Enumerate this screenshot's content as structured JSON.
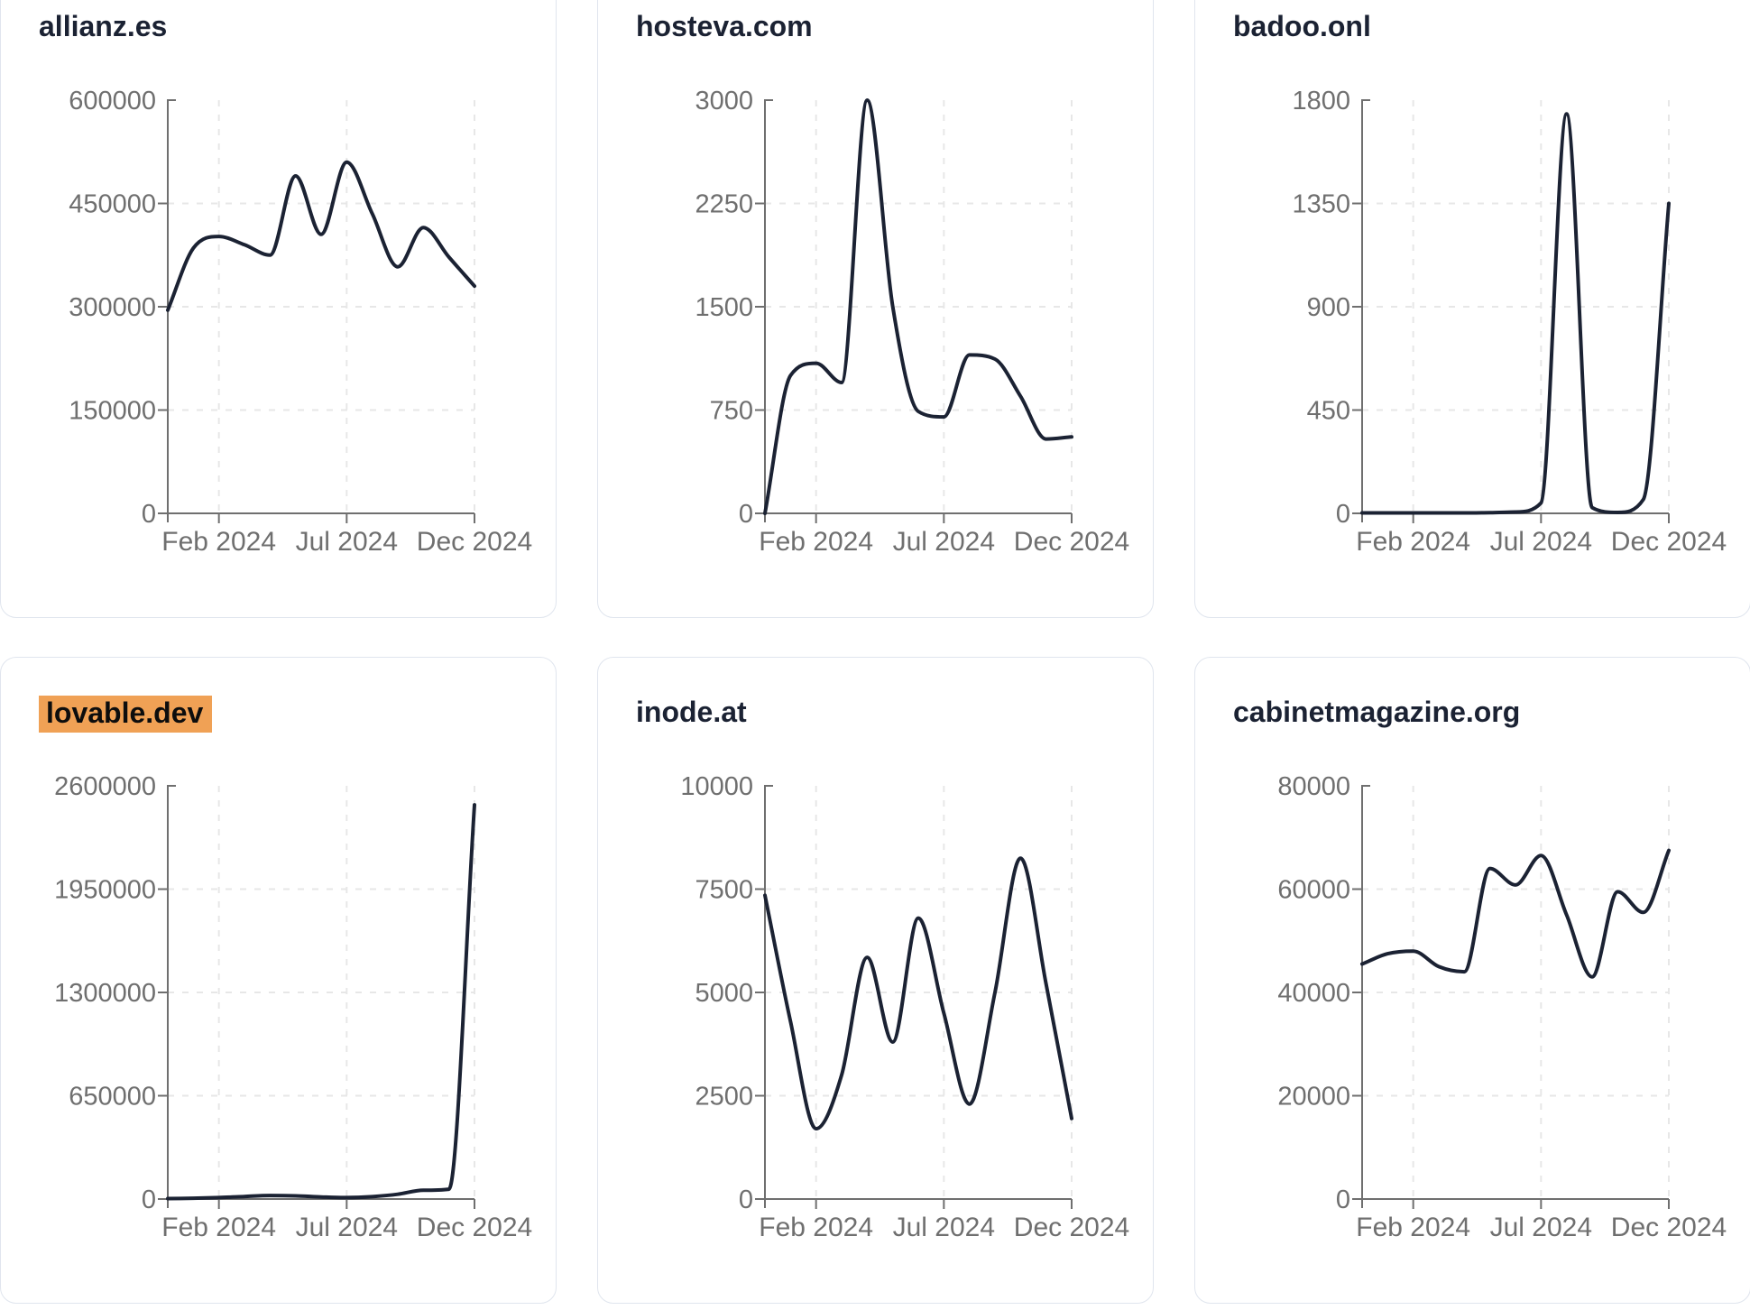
{
  "page": {
    "background_color": "#ffffff",
    "card_border_color": "#e0e5ee",
    "line_color": "#1b2233",
    "title_color": "#1b2233",
    "axis_color": "#6f6f6f",
    "tick_label_color": "#6f6f6f",
    "grid_color": "#e7e7e7",
    "highlight_color": "#f0a155"
  },
  "months": [
    "Dec 2023",
    "Jan 2024",
    "Feb 2024",
    "Mar 2024",
    "Apr 2024",
    "May 2024",
    "Jun 2024",
    "Jul 2024",
    "Aug 2024",
    "Sep 2024",
    "Oct 2024",
    "Nov 2024",
    "Dec 2024"
  ],
  "x_axis": {
    "tick_labels": [
      "Feb 2024",
      "Jul 2024",
      "Dec 2024"
    ],
    "tick_month_indices": [
      2,
      7,
      12
    ]
  },
  "cards": [
    {
      "title": "allianz.es",
      "highlighted": false
    },
    {
      "title": "hosteva.com",
      "highlighted": false
    },
    {
      "title": "badoo.onl",
      "highlighted": false
    },
    {
      "title": "lovable.dev",
      "highlighted": true
    },
    {
      "title": "inode.at",
      "highlighted": false
    },
    {
      "title": "cabinetmagazine.org",
      "highlighted": false
    }
  ],
  "chart_data": [
    {
      "type": "line",
      "title": "allianz.es",
      "x": [
        "Dec 2023",
        "Jan 2024",
        "Feb 2024",
        "Mar 2024",
        "Apr 2024",
        "May 2024",
        "Jun 2024",
        "Jul 2024",
        "Aug 2024",
        "Sep 2024",
        "Oct 2024",
        "Nov 2024",
        "Dec 2024"
      ],
      "values": [
        295000,
        385000,
        402000,
        390000,
        375000,
        490000,
        405000,
        510000,
        435000,
        358000,
        415000,
        372000,
        330000
      ],
      "y_ticks": [
        0,
        150000,
        300000,
        450000,
        600000
      ],
      "ylim": [
        0,
        600000
      ],
      "x_tick_labels": [
        "Feb 2024",
        "Jul 2024",
        "Dec 2024"
      ],
      "grid": "dashed",
      "legend": "none"
    },
    {
      "type": "line",
      "title": "hosteva.com",
      "x": [
        "Dec 2023",
        "Jan 2024",
        "Feb 2024",
        "Mar 2024",
        "Apr 2024",
        "May 2024",
        "Jun 2024",
        "Jul 2024",
        "Aug 2024",
        "Sep 2024",
        "Oct 2024",
        "Nov 2024",
        "Dec 2024"
      ],
      "values": [
        0,
        1000,
        1090,
        950,
        3000,
        1500,
        740,
        700,
        1150,
        1120,
        850,
        540,
        555
      ],
      "y_ticks": [
        0,
        750,
        1500,
        2250,
        3000
      ],
      "ylim": [
        0,
        3000
      ],
      "x_tick_labels": [
        "Feb 2024",
        "Jul 2024",
        "Dec 2024"
      ],
      "grid": "dashed",
      "legend": "none"
    },
    {
      "type": "line",
      "title": "badoo.onl",
      "x": [
        "Dec 2023",
        "Jan 2024",
        "Feb 2024",
        "Mar 2024",
        "Apr 2024",
        "May 2024",
        "Jun 2024",
        "Jul 2024",
        "Aug 2024",
        "Sep 2024",
        "Oct 2024",
        "Nov 2024",
        "Dec 2024"
      ],
      "values": [
        2,
        2,
        2,
        2,
        2,
        3,
        6,
        45,
        1740,
        25,
        4,
        60,
        1350
      ],
      "y_ticks": [
        0,
        450,
        900,
        1350,
        1800
      ],
      "ylim": [
        0,
        1800
      ],
      "x_tick_labels": [
        "Feb 2024",
        "Jul 2024",
        "Dec 2024"
      ],
      "grid": "dashed",
      "legend": "none"
    },
    {
      "type": "line",
      "title": "lovable.dev",
      "x": [
        "Dec 2023",
        "Jan 2024",
        "Feb 2024",
        "Mar 2024",
        "Apr 2024",
        "May 2024",
        "Jun 2024",
        "Jul 2024",
        "Aug 2024",
        "Sep 2024",
        "Oct 2024",
        "Nov 2024",
        "Dec 2024"
      ],
      "values": [
        3000,
        5000,
        9000,
        16000,
        22000,
        20000,
        13000,
        9000,
        15000,
        30000,
        55000,
        62000,
        2480000
      ],
      "y_ticks": [
        0,
        650000,
        1300000,
        1950000,
        2600000
      ],
      "ylim": [
        0,
        2600000
      ],
      "x_tick_labels": [
        "Feb 2024",
        "Jul 2024",
        "Dec 2024"
      ],
      "grid": "dashed",
      "legend": "none"
    },
    {
      "type": "line",
      "title": "inode.at",
      "x": [
        "Dec 2023",
        "Jan 2024",
        "Feb 2024",
        "Mar 2024",
        "Apr 2024",
        "May 2024",
        "Jun 2024",
        "Jul 2024",
        "Aug 2024",
        "Sep 2024",
        "Oct 2024",
        "Nov 2024",
        "Dec 2024"
      ],
      "values": [
        7350,
        4300,
        1700,
        3000,
        5850,
        3800,
        6800,
        4500,
        2300,
        5000,
        8250,
        5200,
        1950
      ],
      "y_ticks": [
        0,
        2500,
        5000,
        7500,
        10000
      ],
      "ylim": [
        0,
        10000
      ],
      "x_tick_labels": [
        "Feb 2024",
        "Jul 2024",
        "Dec 2024"
      ],
      "grid": "dashed",
      "legend": "none"
    },
    {
      "type": "line",
      "title": "cabinetmagazine.org",
      "x": [
        "Dec 2023",
        "Jan 2024",
        "Feb 2024",
        "Mar 2024",
        "Apr 2024",
        "May 2024",
        "Jun 2024",
        "Jul 2024",
        "Aug 2024",
        "Sep 2024",
        "Oct 2024",
        "Nov 2024",
        "Dec 2024"
      ],
      "values": [
        45500,
        47500,
        48000,
        45000,
        44000,
        64000,
        60800,
        66500,
        55000,
        43000,
        59500,
        55500,
        67500
      ],
      "y_ticks": [
        0,
        20000,
        40000,
        60000,
        80000
      ],
      "ylim": [
        0,
        80000
      ],
      "x_tick_labels": [
        "Feb 2024",
        "Jul 2024",
        "Dec 2024"
      ],
      "grid": "dashed",
      "legend": "none"
    }
  ]
}
